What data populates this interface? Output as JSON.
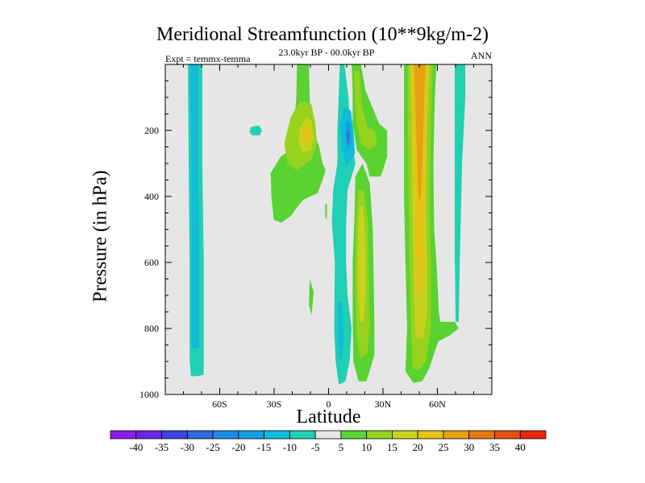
{
  "chart_data": {
    "type": "filled-contour",
    "title": "Meridional Streamfunction (10**9kg/m-2)",
    "subtitle": "23.0kyr BP - 00.0kyr BP",
    "left_note": "Expt = temmx-temma",
    "right_note": "ANN",
    "xlabel": "Latitude",
    "ylabel": "Pressure (in hPa)",
    "xlim": [
      -90,
      90
    ],
    "ylim": [
      1000,
      0
    ],
    "x_ticks": [
      {
        "value": -60,
        "label": "60S"
      },
      {
        "value": -30,
        "label": "30S"
      },
      {
        "value": 0,
        "label": "0"
      },
      {
        "value": 30,
        "label": "30N"
      },
      {
        "value": 60,
        "label": "60N"
      }
    ],
    "y_ticks": [
      {
        "value": 200,
        "label": "200"
      },
      {
        "value": 400,
        "label": "400"
      },
      {
        "value": 600,
        "label": "600"
      },
      {
        "value": 800,
        "label": "800"
      },
      {
        "value": 1000,
        "label": "1000"
      }
    ],
    "background_color": "#e6e6e6",
    "levels": [
      -40,
      -35,
      -30,
      -25,
      -20,
      -15,
      -10,
      -5,
      5,
      10,
      15,
      20,
      25,
      30,
      35,
      40
    ],
    "colorbar_colors": [
      "#8a1ee6",
      "#6a28e0",
      "#3c46dc",
      "#2f69dc",
      "#1e8ce6",
      "#14a0e6",
      "#10bcd8",
      "#20d0b4",
      "#e6e6e6",
      "#5ad232",
      "#96d21e",
      "#c8d21e",
      "#e6c314",
      "#e6a014",
      "#e67814",
      "#e65014",
      "#e62814"
    ],
    "colorbar_labels": [
      "-40",
      "-35",
      "-30",
      "-25",
      "-20",
      "-15",
      "-10",
      "-5",
      "5",
      "10",
      "15",
      "20",
      "25",
      "30",
      "35",
      "40"
    ],
    "regions": [
      {
        "name": "SH polar cell",
        "value": -10,
        "color": "#20d0b4",
        "points": [
          [
            -77.5,
            0
          ],
          [
            -69.6,
            0
          ],
          [
            -69.6,
            300
          ],
          [
            -68.8,
            600
          ],
          [
            -68.8,
            940
          ],
          [
            -72.3,
            945
          ],
          [
            -75.8,
            945
          ],
          [
            -76.6,
            900
          ],
          [
            -76.6,
            600
          ],
          [
            -77.1,
            300
          ]
        ]
      },
      {
        "name": "SH polar cell core",
        "value": -15,
        "color": "#10bcd8",
        "points": [
          [
            -76.2,
            0
          ],
          [
            -71.8,
            0
          ],
          [
            -71.8,
            300
          ],
          [
            -71.3,
            600
          ],
          [
            -71.3,
            860
          ],
          [
            -73.5,
            860
          ],
          [
            -75.4,
            860
          ],
          [
            -75.4,
            500
          ],
          [
            -75.8,
            250
          ]
        ]
      },
      {
        "name": "isolated 30S blob",
        "value": -10,
        "color": "#20d0b4",
        "points": [
          [
            -42.8,
            190
          ],
          [
            -38.4,
            185
          ],
          [
            -36.7,
            200
          ],
          [
            -38,
            215
          ],
          [
            -42,
            215
          ],
          [
            -43.6,
            205
          ]
        ]
      },
      {
        "name": "SH Ferrel cell",
        "value": 5,
        "color": "#5ad232",
        "points": [
          [
            -17.4,
            0
          ],
          [
            -10.8,
            0
          ],
          [
            -10.4,
            100
          ],
          [
            -9.5,
            180
          ],
          [
            -5.1,
            250
          ],
          [
            -3.3,
            300
          ],
          [
            -1.6,
            320
          ],
          [
            -3.3,
            350
          ],
          [
            -6,
            390
          ],
          [
            -13.9,
            410
          ],
          [
            -17,
            430
          ],
          [
            -20.9,
            460
          ],
          [
            -26.2,
            480
          ],
          [
            -30.2,
            470
          ],
          [
            -31.5,
            400
          ],
          [
            -31.9,
            330
          ],
          [
            -26.5,
            280
          ],
          [
            -21.3,
            260
          ],
          [
            -19.1,
            200
          ],
          [
            -17.8,
            100
          ]
        ]
      },
      {
        "name": "SH Ferrel cell core",
        "value": 10,
        "color": "#96d21e",
        "points": [
          [
            -15.6,
            110
          ],
          [
            -9.5,
            120
          ],
          [
            -7.3,
            180
          ],
          [
            -6.4,
            240
          ],
          [
            -9.5,
            290
          ],
          [
            -17.8,
            320
          ],
          [
            -22.6,
            300
          ],
          [
            -24.4,
            240
          ],
          [
            -20.9,
            160
          ]
        ]
      },
      {
        "name": "SH Ferrel cell inner",
        "value": 15,
        "color": "#c8d21e",
        "points": [
          [
            -12.3,
            160
          ],
          [
            -9.5,
            170
          ],
          [
            -8.2,
            220
          ],
          [
            -9.5,
            260
          ],
          [
            -13.9,
            265
          ],
          [
            -16.5,
            240
          ],
          [
            -16.1,
            190
          ]
        ]
      },
      {
        "name": "SH Ferrel cell max",
        "value": 20,
        "color": "#e6c314",
        "points": [
          [
            -11.8,
            185
          ],
          [
            -10.3,
            195
          ],
          [
            -10.1,
            230
          ],
          [
            -12.3,
            240
          ],
          [
            -14.4,
            225
          ],
          [
            -13.9,
            195
          ]
        ]
      },
      {
        "name": "small filament 1",
        "value": 5,
        "color": "#5ad232",
        "points": [
          [
            -10.4,
            650
          ],
          [
            -8.2,
            690
          ],
          [
            -9.3,
            760
          ],
          [
            -10.8,
            730
          ]
        ]
      },
      {
        "name": "small filament 2",
        "value": 5,
        "color": "#5ad232",
        "points": [
          [
            -1.8,
            420
          ],
          [
            -0.9,
            425
          ],
          [
            -0.9,
            470
          ],
          [
            -1.8,
            465
          ]
        ]
      },
      {
        "name": "equatorial negative",
        "value": -5,
        "color": "#20d0b4",
        "points": [
          [
            6.2,
            0
          ],
          [
            8.8,
            0
          ],
          [
            11,
            100
          ],
          [
            11.8,
            200
          ],
          [
            14.8,
            300
          ],
          [
            12.7,
            340
          ],
          [
            10.5,
            380
          ],
          [
            9.7,
            480
          ],
          [
            9.7,
            600
          ],
          [
            10.5,
            700
          ],
          [
            12.7,
            800
          ],
          [
            11.6,
            900
          ],
          [
            9.3,
            960
          ],
          [
            5.7,
            970
          ],
          [
            3.9,
            900
          ],
          [
            3.1,
            800
          ],
          [
            3.5,
            600
          ],
          [
            1.8,
            480
          ],
          [
            2.6,
            380
          ],
          [
            4.9,
            300
          ],
          [
            4.9,
            200
          ]
        ]
      },
      {
        "name": "equatorial negative core",
        "value": -10,
        "color": "#10bcd8",
        "points": [
          [
            8.4,
            130
          ],
          [
            12.3,
            140
          ],
          [
            13.7,
            200
          ],
          [
            14.6,
            270
          ],
          [
            9.7,
            310
          ],
          [
            7.1,
            250
          ],
          [
            6.2,
            180
          ]
        ]
      },
      {
        "name": "equatorial negative inner",
        "value": -15,
        "color": "#14a0e6",
        "points": [
          [
            9.7,
            170
          ],
          [
            12.3,
            180
          ],
          [
            12.7,
            240
          ],
          [
            10.5,
            260
          ],
          [
            9.3,
            220
          ]
        ]
      },
      {
        "name": "equatorial negative max",
        "value": -20,
        "color": "#2f69dc",
        "points": [
          [
            10.1,
            200
          ],
          [
            11.4,
            205
          ],
          [
            11.4,
            235
          ],
          [
            10.5,
            240
          ]
        ]
      },
      {
        "name": "deep negative lobe",
        "value": -10,
        "color": "#10bcd8",
        "points": [
          [
            5.3,
            720
          ],
          [
            7.5,
            720
          ],
          [
            8.4,
            850
          ],
          [
            6.6,
            900
          ],
          [
            5.3,
            850
          ]
        ]
      },
      {
        "name": "NH Hadley positive",
        "value": 5,
        "color": "#5ad232",
        "points": [
          [
            14.8,
            340
          ],
          [
            18.7,
            300
          ],
          [
            22.7,
            360
          ],
          [
            24.4,
            500
          ],
          [
            24.9,
            650
          ],
          [
            25.3,
            800
          ],
          [
            25.3,
            880
          ],
          [
            20.9,
            960
          ],
          [
            16.5,
            960
          ],
          [
            13.7,
            900
          ],
          [
            13.3,
            780
          ],
          [
            13.3,
            600
          ],
          [
            14.4,
            450
          ]
        ]
      },
      {
        "name": "NH Hadley core",
        "value": 10,
        "color": "#96d21e",
        "points": [
          [
            16.1,
            380
          ],
          [
            19.6,
            380
          ],
          [
            21.8,
            480
          ],
          [
            22.2,
            650
          ],
          [
            22.7,
            800
          ],
          [
            21.3,
            880
          ],
          [
            17.4,
            890
          ],
          [
            15.6,
            820
          ],
          [
            14.8,
            650
          ],
          [
            15.2,
            480
          ]
        ]
      },
      {
        "name": "NH Hadley inner",
        "value": 15,
        "color": "#c8d21e",
        "points": [
          [
            16.9,
            430
          ],
          [
            19.1,
            430
          ],
          [
            20.4,
            550
          ],
          [
            20.4,
            700
          ],
          [
            19.1,
            780
          ],
          [
            17.4,
            780
          ],
          [
            16.1,
            700
          ],
          [
            16.1,
            550
          ]
        ]
      },
      {
        "name": "upper NH band",
        "value": 5,
        "color": "#5ad232",
        "points": [
          [
            12.7,
            0
          ],
          [
            17.8,
            0
          ],
          [
            20.4,
            80
          ],
          [
            27.9,
            180
          ],
          [
            32.3,
            200
          ],
          [
            32.3,
            280
          ],
          [
            28.8,
            340
          ],
          [
            22.7,
            340
          ],
          [
            20.9,
            300
          ],
          [
            15.6,
            260
          ],
          [
            13.3,
            180
          ],
          [
            13.3,
            80
          ]
        ]
      },
      {
        "name": "upper NH band core",
        "value": 10,
        "color": "#96d21e",
        "points": [
          [
            14.1,
            20
          ],
          [
            17,
            20
          ],
          [
            18.3,
            120
          ],
          [
            21.3,
            190
          ],
          [
            25.7,
            200
          ],
          [
            26.6,
            240
          ],
          [
            22.7,
            260
          ],
          [
            17.8,
            240
          ],
          [
            15.6,
            180
          ],
          [
            14.6,
            100
          ]
        ]
      },
      {
        "name": "NH Ferrel positive",
        "value": 5,
        "color": "#5ad232",
        "points": [
          [
            41.6,
            0
          ],
          [
            59.5,
            0
          ],
          [
            58.6,
            100
          ],
          [
            57.8,
            300
          ],
          [
            58.2,
            500
          ],
          [
            59.5,
            600
          ],
          [
            60.8,
            750
          ],
          [
            61.7,
            780
          ],
          [
            69.6,
            780
          ],
          [
            71.8,
            800
          ],
          [
            67,
            820
          ],
          [
            60.4,
            840
          ],
          [
            55.6,
            920
          ],
          [
            51.6,
            960
          ],
          [
            46.8,
            965
          ],
          [
            42.4,
            930
          ],
          [
            43.3,
            800
          ],
          [
            42.4,
            600
          ],
          [
            41.6,
            400
          ],
          [
            41.6,
            200
          ]
        ]
      },
      {
        "name": "NH Ferrel 10",
        "value": 10,
        "color": "#96d21e",
        "points": [
          [
            43.7,
            0
          ],
          [
            57.3,
            0
          ],
          [
            56.4,
            200
          ],
          [
            55.6,
            400
          ],
          [
            56.4,
            600
          ],
          [
            56.4,
            800
          ],
          [
            53.8,
            900
          ],
          [
            49.8,
            925
          ],
          [
            46.4,
            920
          ],
          [
            45.5,
            800
          ],
          [
            44.6,
            600
          ],
          [
            44.2,
            400
          ],
          [
            43.7,
            200
          ]
        ]
      },
      {
        "name": "NH Ferrel 15",
        "value": 15,
        "color": "#c8d21e",
        "points": [
          [
            44.6,
            0
          ],
          [
            55.6,
            0
          ],
          [
            54.3,
            200
          ],
          [
            53.8,
            400
          ],
          [
            54.3,
            600
          ],
          [
            54.3,
            750
          ],
          [
            52.1,
            830
          ],
          [
            48.1,
            830
          ],
          [
            47.2,
            700
          ],
          [
            46.3,
            500
          ],
          [
            45.9,
            300
          ],
          [
            45.5,
            100
          ]
        ]
      },
      {
        "name": "NH Ferrel 20",
        "value": 20,
        "color": "#e6c314",
        "points": [
          [
            45.9,
            0
          ],
          [
            54.3,
            0
          ],
          [
            53.4,
            200
          ],
          [
            52.9,
            350
          ],
          [
            52.5,
            500
          ],
          [
            52.5,
            620
          ],
          [
            51.2,
            690
          ],
          [
            49.4,
            690
          ],
          [
            48.5,
            580
          ],
          [
            47.6,
            400
          ],
          [
            46.8,
            250
          ],
          [
            46.3,
            100
          ]
        ]
      },
      {
        "name": "NH Ferrel 25",
        "value": 25,
        "color": "#e6a014",
        "points": [
          [
            47.2,
            0
          ],
          [
            53.4,
            0
          ],
          [
            52.5,
            150
          ],
          [
            51.6,
            300
          ],
          [
            50.7,
            400
          ],
          [
            49.8,
            420
          ],
          [
            49,
            320
          ],
          [
            48.1,
            180
          ]
        ]
      },
      {
        "name": "NH polar cell",
        "value": -10,
        "color": "#20d0b4",
        "points": [
          [
            69.6,
            0
          ],
          [
            75.4,
            0
          ],
          [
            75.4,
            100
          ],
          [
            73.6,
            300
          ],
          [
            72.3,
            600
          ],
          [
            71.8,
            780
          ],
          [
            70.1,
            780
          ],
          [
            69.6,
            600
          ],
          [
            69.6,
            300
          ]
        ]
      }
    ]
  }
}
